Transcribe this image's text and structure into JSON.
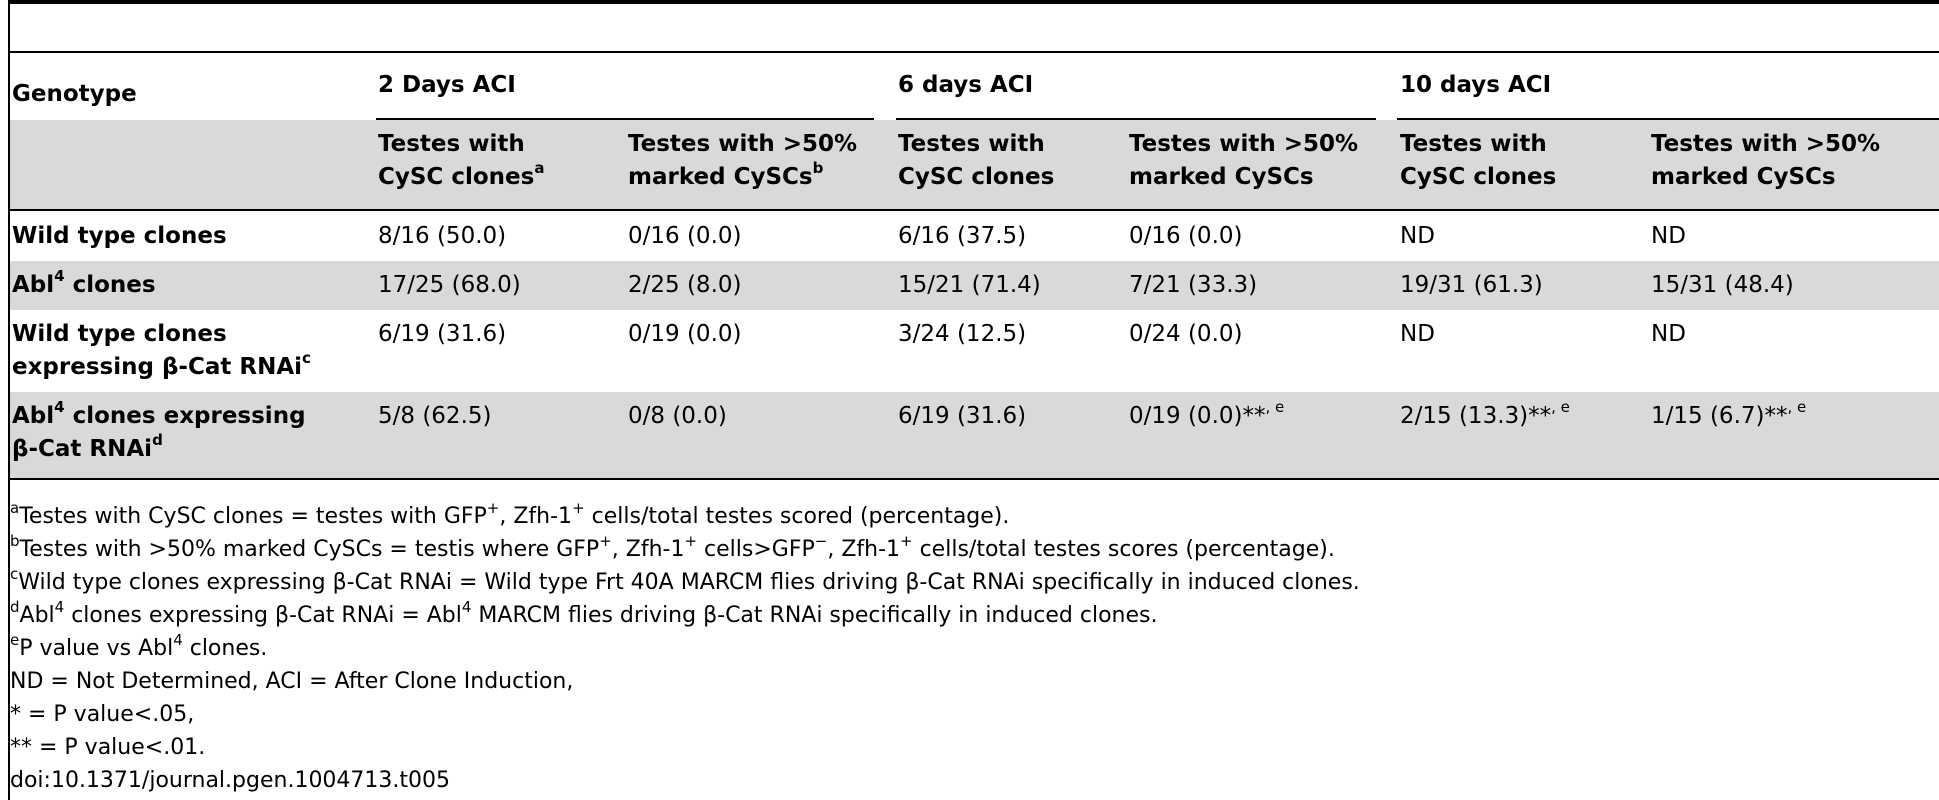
{
  "table": {
    "group_headers": {
      "genotype": "Genotype",
      "g1": "2 Days ACI",
      "g2": "6 days ACI",
      "g3": "10 days ACI"
    },
    "sub_headers": {
      "c1_line1": "Testes with",
      "c1_line2": "CySC clones",
      "c1_sup": "a",
      "c2_line1": "Testes with >50%",
      "c2_line2": "marked CySCs",
      "c2_sup": "b",
      "c3_line1": "Testes with",
      "c3_line2": "CySC clones",
      "c4_line1": "Testes with >50%",
      "c4_line2": "marked CySCs",
      "c5_line1": "Testes with",
      "c5_line2": "CySC clones",
      "c6_line1": "Testes with >50%",
      "c6_line2": "marked CySCs"
    },
    "rows": [
      {
        "label": "Wild type clones",
        "values": [
          "8/16 (50.0)",
          "0/16 (0.0)",
          "6/16 (37.5)",
          "0/16 (0.0)",
          "ND",
          "ND"
        ]
      },
      {
        "label_pre": "Abl",
        "label_sup": "4",
        "label_post": " clones",
        "values": [
          "17/25 (68.0)",
          "2/25 (8.0)",
          "15/21 (71.4)",
          "7/21 (33.3)",
          "19/31 (61.3)",
          "15/31 (48.4)"
        ]
      },
      {
        "label_line1": "Wild type clones",
        "label_line2": "expressing β-Cat RNAi",
        "label_sup": "c",
        "values": [
          "6/19 (31.6)",
          "0/19 (0.0)",
          "3/24 (12.5)",
          "0/24 (0.0)",
          "ND",
          "ND"
        ]
      },
      {
        "label_line1_pre": "Abl",
        "label_line1_sup": "4",
        "label_line1_post": " clones expressing",
        "label_line2": "β-Cat RNAi",
        "label_sup": "d",
        "values": [
          "5/8 (62.5)",
          "0/8 (0.0)",
          "6/19 (31.6)",
          "0/19 (0.0)**",
          "2/15 (13.3)**",
          "1/15 (6.7)**"
        ],
        "value_sups": [
          "",
          "",
          "",
          ", e",
          ", e",
          ", e"
        ]
      }
    ]
  },
  "footnotes": {
    "a_sup": "a",
    "a_text": "Testes with CySC clones = testes with GFP",
    "a_sup2": "+",
    "a_text2": ", Zfh-1",
    "a_sup3": "+",
    "a_text3": " cells/total testes scored (percentage).",
    "b_sup": "b",
    "b_text": "Testes with >50% marked CySCs = testis where GFP",
    "b_sup2": "+",
    "b_text2": ", Zfh-1",
    "b_sup3": "+",
    "b_text3": " cells>GFP",
    "b_sup4": "−",
    "b_text4": ", Zfh-1",
    "b_sup5": "+",
    "b_text5": " cells/total testes scores (percentage).",
    "c_sup": "c",
    "c_text": "Wild type clones expressing β-Cat RNAi = Wild type Frt 40A MARCM flies driving β-Cat RNAi specifically in induced clones.",
    "d_sup": "d",
    "d_text": "Abl",
    "d_sup2": "4",
    "d_text2": " clones expressing β-Cat RNAi = Abl",
    "d_sup3": "4",
    "d_text3": " MARCM flies driving β-Cat RNAi specifically in induced clones.",
    "e_sup": "e",
    "e_text": "P value vs Abl",
    "e_sup2": "4",
    "e_text2": " clones.",
    "nd_line": "ND = Not Determined, ACI = After Clone Induction,",
    "star1": "* = P value<.05,",
    "star2": "** = P value<.01.",
    "doi": "doi:10.1371/journal.pgen.1004713.t005"
  }
}
